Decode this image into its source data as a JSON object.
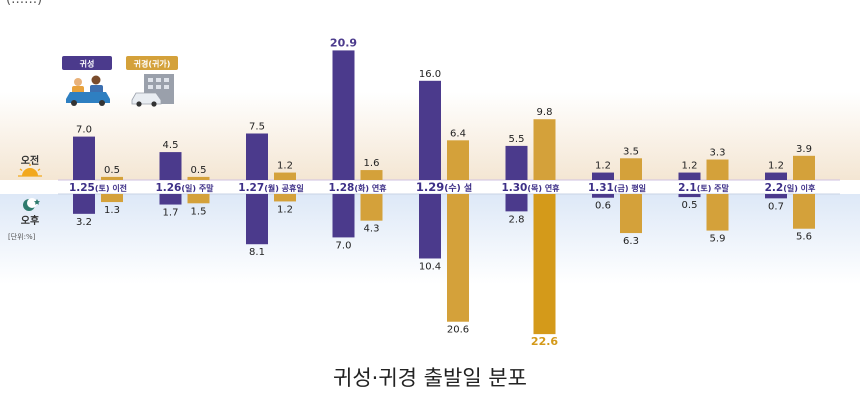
{
  "partial_top_text": "(……)",
  "caption": "귀성·귀경 출발일 분포",
  "legend": {
    "homecoming": "귀성",
    "return": "귀경(귀가)"
  },
  "labels": {
    "am": "오전",
    "pm": "오후",
    "unit": "[단위:%]"
  },
  "colors": {
    "homecoming": "#4b3a8c",
    "return": "#d4a13a",
    "return_highlight": "#d49a1a",
    "date_text": "#3d2f87",
    "am_band": "#f6eadb",
    "pm_band": "#e3ecf8"
  },
  "icons": {
    "am": "sun-icon",
    "pm": "moon-star-icon",
    "homecoming": "family-car-icon",
    "return": "car-building-icon"
  },
  "chart_data": {
    "type": "bar",
    "categories": [
      "1.25(토) 이전",
      "1.26(일) 주말",
      "1.27(월) 공휴일",
      "1.28(화) 연휴",
      "1.29(수) 설",
      "1.30(목) 연휴",
      "1.31(금) 평일",
      "2.1(토) 주말",
      "2.2(일) 이후"
    ],
    "category_dates": [
      "1.25",
      "1.26",
      "1.27",
      "1.28",
      "1.29",
      "1.30",
      "1.31",
      "2.1",
      "2.2"
    ],
    "category_days": [
      "(토) 이전",
      "(일) 주말",
      "(월) 공휴일",
      "(화) 연휴",
      "(수) 설",
      "(목) 연휴",
      "(금) 평일",
      "(토) 주말",
      "(일) 이후"
    ],
    "series": [
      {
        "name": "귀성 오전",
        "values": [
          7.0,
          4.5,
          7.5,
          20.9,
          16.0,
          5.5,
          1.2,
          1.2,
          1.2
        ]
      },
      {
        "name": "귀경(귀가) 오전",
        "values": [
          0.5,
          0.5,
          1.2,
          1.6,
          6.4,
          9.8,
          3.5,
          3.3,
          3.9
        ]
      },
      {
        "name": "귀성 오후",
        "values": [
          3.2,
          1.7,
          8.1,
          7.0,
          10.4,
          2.8,
          0.6,
          0.5,
          0.7
        ]
      },
      {
        "name": "귀경(귀가) 오후",
        "values": [
          1.3,
          1.5,
          1.2,
          4.3,
          20.6,
          22.6,
          6.3,
          5.9,
          5.6
        ]
      }
    ],
    "highlight": {
      "series_index": 3,
      "category_index": 5
    },
    "ylabel": "",
    "unit": "%"
  }
}
